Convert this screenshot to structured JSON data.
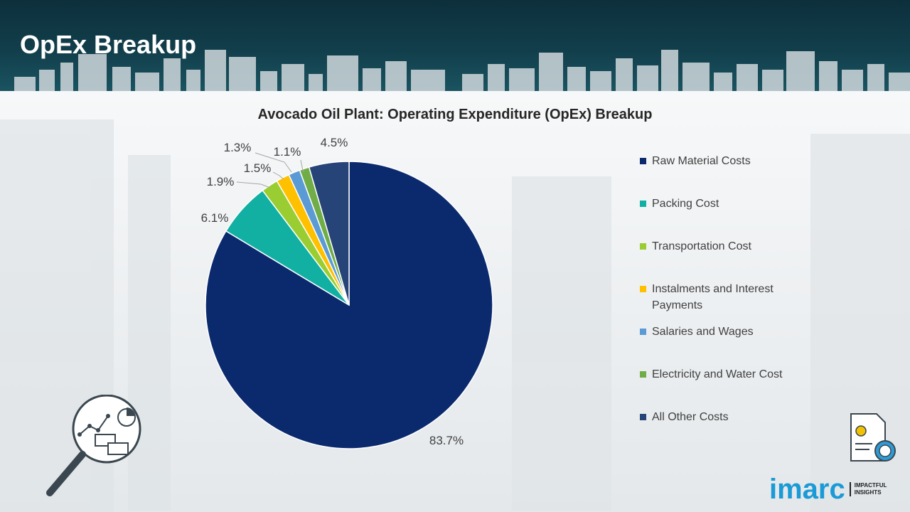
{
  "page": {
    "title": "OpEx Breakup"
  },
  "brand": {
    "name": "imarc",
    "tagline_line1": "IMPACTFUL",
    "tagline_line2": "INSIGHTS"
  },
  "icons": {
    "header_skyline": "city-skyline-icon",
    "analysis": "magnifier-analytics-icon",
    "finance": "invoice-dollar-gear-icon"
  },
  "colors": {
    "header_bg": "#0f3440",
    "brand_blue": "#1a9ad6"
  },
  "chart_data": {
    "type": "pie",
    "title": "Avocado Oil Plant: Operating Expenditure (OpEx) Breakup",
    "legend_position": "right",
    "slices": [
      {
        "name": "Raw Material Costs",
        "value": 83.7,
        "label": "83.7%",
        "color": "#0b2a6e"
      },
      {
        "name": "Packing Cost",
        "value": 6.1,
        "label": "6.1%",
        "color": "#12b0a2"
      },
      {
        "name": "Transportation Cost",
        "value": 1.9,
        "label": "1.9%",
        "color": "#9acd32"
      },
      {
        "name": "Instalments and Interest Payments",
        "value": 1.5,
        "label": "1.5%",
        "color": "#ffc000"
      },
      {
        "name": "Salaries and Wages",
        "value": 1.3,
        "label": "1.3%",
        "color": "#5b9bd5"
      },
      {
        "name": "Electricity and Water Cost",
        "value": 1.1,
        "label": "1.1%",
        "color": "#70ad47"
      },
      {
        "name": "All Other Costs",
        "value": 4.5,
        "label": "4.5%",
        "color": "#264478"
      }
    ]
  }
}
